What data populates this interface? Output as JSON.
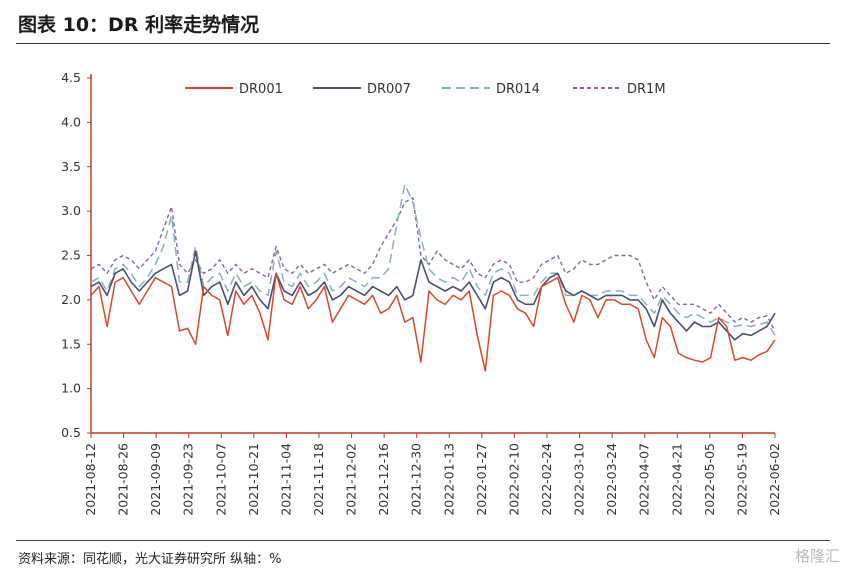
{
  "header": {
    "title": "图表 10：DR 利率走势情况"
  },
  "footer": {
    "source": "资料来源：同花顺，光大证券研究所 纵轴：%",
    "watermark": "格隆汇"
  },
  "chart_data": {
    "type": "line",
    "x_ticks": [
      "2021-08-12",
      "2021-08-26",
      "2021-09-09",
      "2021-09-23",
      "2021-10-07",
      "2021-10-21",
      "2021-11-04",
      "2021-11-18",
      "2021-12-02",
      "2021-12-16",
      "2021-12-30",
      "2022-01-13",
      "2022-01-27",
      "2022-02-10",
      "2022-02-24",
      "2022-03-10",
      "2022-03-24",
      "2022-04-07",
      "2022-04-21",
      "2022-05-05",
      "2022-05-19",
      "2022-06-02"
    ],
    "y_ticks": [
      "0.5",
      "1.0",
      "1.5",
      "2.0",
      "2.5",
      "3.0",
      "3.5",
      "4.0",
      "4.5"
    ],
    "ylim": [
      0.5,
      4.5
    ],
    "colors": {
      "DR001": "#d9482a",
      "DR007": "#4a4f6e",
      "DR014": "#86b2bd",
      "DR1M": "#8a63a5"
    },
    "series": [
      {
        "name": "DR001",
        "values": [
          2.05,
          2.15,
          1.7,
          2.2,
          2.25,
          2.1,
          1.95,
          2.1,
          2.25,
          2.2,
          2.15,
          1.65,
          1.68,
          1.5,
          2.15,
          2.05,
          2.0,
          1.6,
          2.1,
          1.95,
          2.05,
          1.85,
          1.55,
          2.3,
          2.0,
          1.95,
          2.15,
          1.9,
          2.0,
          2.15,
          1.75,
          1.9,
          2.05,
          2.0,
          1.95,
          2.05,
          1.85,
          1.9,
          2.05,
          1.75,
          1.8,
          1.3,
          2.1,
          2.0,
          1.95,
          2.05,
          2.0,
          2.1,
          1.6,
          1.2,
          2.05,
          2.1,
          2.05,
          1.9,
          1.85,
          1.7,
          2.15,
          2.2,
          2.25,
          1.95,
          1.75,
          2.05,
          2.0,
          1.8,
          2.0,
          2.0,
          1.95,
          1.95,
          1.9,
          1.55,
          1.35,
          1.8,
          1.7,
          1.4,
          1.35,
          1.32,
          1.3,
          1.35,
          1.8,
          1.7,
          1.32,
          1.35,
          1.32,
          1.38,
          1.42,
          1.55
        ]
      },
      {
        "name": "DR007",
        "values": [
          2.15,
          2.2,
          2.05,
          2.3,
          2.35,
          2.2,
          2.1,
          2.2,
          2.3,
          2.35,
          2.4,
          2.05,
          2.1,
          2.55,
          2.05,
          2.15,
          2.2,
          1.95,
          2.2,
          2.05,
          2.15,
          2.0,
          1.9,
          2.3,
          2.1,
          2.05,
          2.2,
          2.05,
          2.1,
          2.2,
          2.0,
          2.05,
          2.15,
          2.1,
          2.05,
          2.15,
          2.1,
          2.05,
          2.15,
          2.0,
          2.05,
          2.45,
          2.2,
          2.15,
          2.1,
          2.15,
          2.1,
          2.2,
          2.05,
          1.9,
          2.2,
          2.25,
          2.2,
          2.0,
          1.95,
          1.95,
          2.15,
          2.25,
          2.3,
          2.1,
          2.05,
          2.1,
          2.05,
          2.0,
          2.05,
          2.05,
          2.05,
          2.0,
          2.0,
          1.9,
          1.7,
          2.0,
          1.85,
          1.75,
          1.65,
          1.75,
          1.7,
          1.7,
          1.75,
          1.65,
          1.55,
          1.62,
          1.6,
          1.65,
          1.7,
          1.85
        ]
      },
      {
        "name": "DR014",
        "values": [
          2.2,
          2.25,
          2.1,
          2.35,
          2.4,
          2.3,
          2.15,
          2.25,
          2.4,
          2.6,
          2.95,
          2.2,
          2.2,
          2.6,
          2.15,
          2.25,
          2.3,
          2.1,
          2.3,
          2.15,
          2.2,
          2.1,
          2.05,
          2.55,
          2.2,
          2.15,
          2.3,
          2.15,
          2.2,
          2.3,
          2.1,
          2.15,
          2.25,
          2.2,
          2.15,
          2.25,
          2.25,
          2.35,
          2.85,
          3.3,
          3.1,
          2.7,
          2.35,
          2.25,
          2.2,
          2.25,
          2.2,
          2.35,
          2.15,
          2.05,
          2.3,
          2.35,
          2.3,
          2.05,
          2.05,
          2.05,
          2.2,
          2.3,
          2.3,
          2.05,
          2.05,
          2.1,
          2.05,
          2.05,
          2.1,
          2.1,
          2.1,
          2.05,
          2.05,
          1.95,
          1.85,
          2.05,
          1.95,
          1.85,
          1.8,
          1.85,
          1.8,
          1.75,
          1.8,
          1.75,
          1.7,
          1.72,
          1.7,
          1.72,
          1.75,
          1.6
        ]
      },
      {
        "name": "DR1M",
        "values": [
          2.35,
          2.4,
          2.3,
          2.45,
          2.5,
          2.45,
          2.35,
          2.45,
          2.55,
          2.8,
          3.05,
          2.4,
          2.3,
          2.45,
          2.3,
          2.35,
          2.45,
          2.3,
          2.4,
          2.3,
          2.35,
          2.3,
          2.25,
          2.6,
          2.35,
          2.3,
          2.4,
          2.3,
          2.35,
          2.4,
          2.3,
          2.35,
          2.4,
          2.35,
          2.3,
          2.4,
          2.6,
          2.75,
          2.9,
          3.1,
          3.15,
          2.5,
          2.4,
          2.55,
          2.45,
          2.4,
          2.35,
          2.45,
          2.3,
          2.25,
          2.4,
          2.45,
          2.4,
          2.2,
          2.2,
          2.25,
          2.4,
          2.45,
          2.5,
          2.3,
          2.35,
          2.45,
          2.4,
          2.4,
          2.45,
          2.5,
          2.5,
          2.5,
          2.45,
          2.2,
          2.0,
          2.15,
          2.05,
          1.95,
          1.95,
          1.95,
          1.9,
          1.85,
          1.95,
          1.85,
          1.75,
          1.8,
          1.75,
          1.8,
          1.82,
          1.65
        ]
      }
    ]
  }
}
